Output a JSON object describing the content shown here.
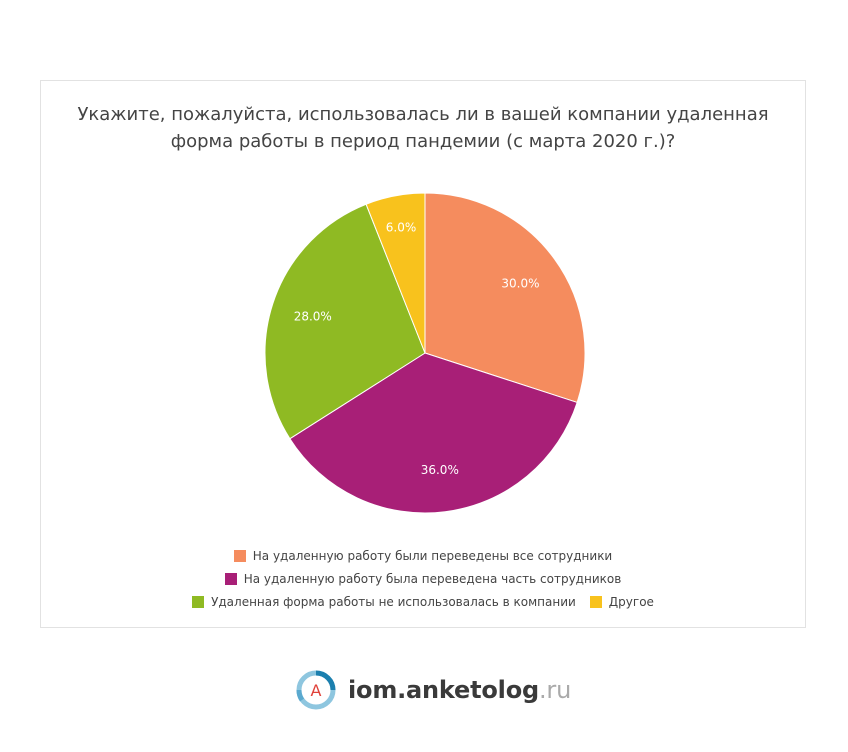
{
  "chart_data": {
    "type": "pie",
    "title_lines": [
      "Укажите, пожалуйста, использовалась ли в вашей компании удаленная",
      "форма работы в период пандемии (с марта 2020 г.)?"
    ],
    "slices": [
      {
        "label": "На удаленную работу были переведены все сотрудники",
        "value": 30.0,
        "display": "30.0%",
        "color": "#f58c5e"
      },
      {
        "label": "На удаленную работу была переведена часть сотрудников",
        "value": 36.0,
        "display": "36.0%",
        "color": "#a81f77"
      },
      {
        "label": "Удаленная форма работы не использовалась в компании",
        "value": 28.0,
        "display": "28.0%",
        "color": "#8fba23"
      },
      {
        "label": "Другое",
        "value": 6.0,
        "display": "6.0%",
        "color": "#f8c21d"
      }
    ],
    "start_angle": "top",
    "direction": "clockwise",
    "legend_position": "bottom"
  },
  "footer": {
    "logo_letter": "A",
    "brand_main": "iom.anketolog",
    "brand_tld": ".ru"
  }
}
